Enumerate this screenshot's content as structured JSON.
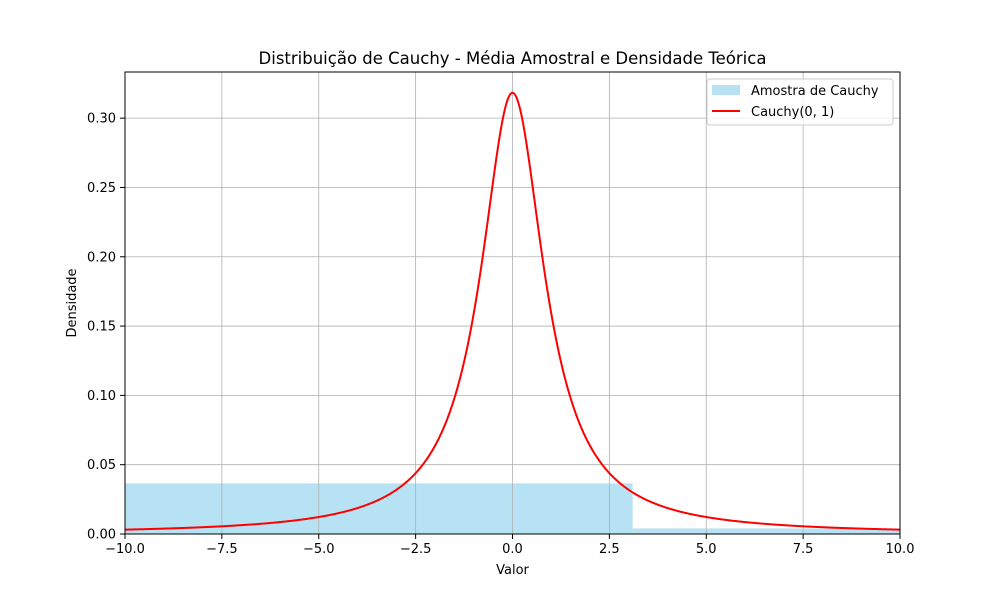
{
  "chart_data": {
    "type": "bar",
    "title": "Distribuição de Cauchy - Média Amostral e Densidade Teórica",
    "xlabel": "Valor",
    "ylabel": "Densidade",
    "xlim": [
      -10,
      10
    ],
    "ylim": [
      0,
      0.3333
    ],
    "xticks": [
      -10,
      -7.5,
      -5,
      -2.5,
      0,
      2.5,
      5,
      7.5,
      10
    ],
    "xtick_labels": [
      "−10.0",
      "−7.5",
      "−5.0",
      "−2.5",
      "0.0",
      "2.5",
      "5.0",
      "7.5",
      "10.0"
    ],
    "yticks": [
      0,
      0.05,
      0.1,
      0.15,
      0.2,
      0.25,
      0.3
    ],
    "ytick_labels": [
      "0.00",
      "0.05",
      "0.10",
      "0.15",
      "0.20",
      "0.25",
      "0.30"
    ],
    "grid": true,
    "legend_position": "top-right",
    "histogram": {
      "name": "Amostra de Cauchy",
      "color": "#87ceeb",
      "opacity": 0.6,
      "bins": [
        {
          "x0": -16.8,
          "x1": 3.1,
          "density": 0.0365
        },
        {
          "x0": 3.1,
          "x1": 23.0,
          "density": 0.004
        }
      ]
    },
    "curve": {
      "name": "Cauchy(0, 1)",
      "color": "#ff0000",
      "function": "1 / (pi * (1 + x^2))",
      "x_range": [
        -10,
        10
      ]
    }
  }
}
